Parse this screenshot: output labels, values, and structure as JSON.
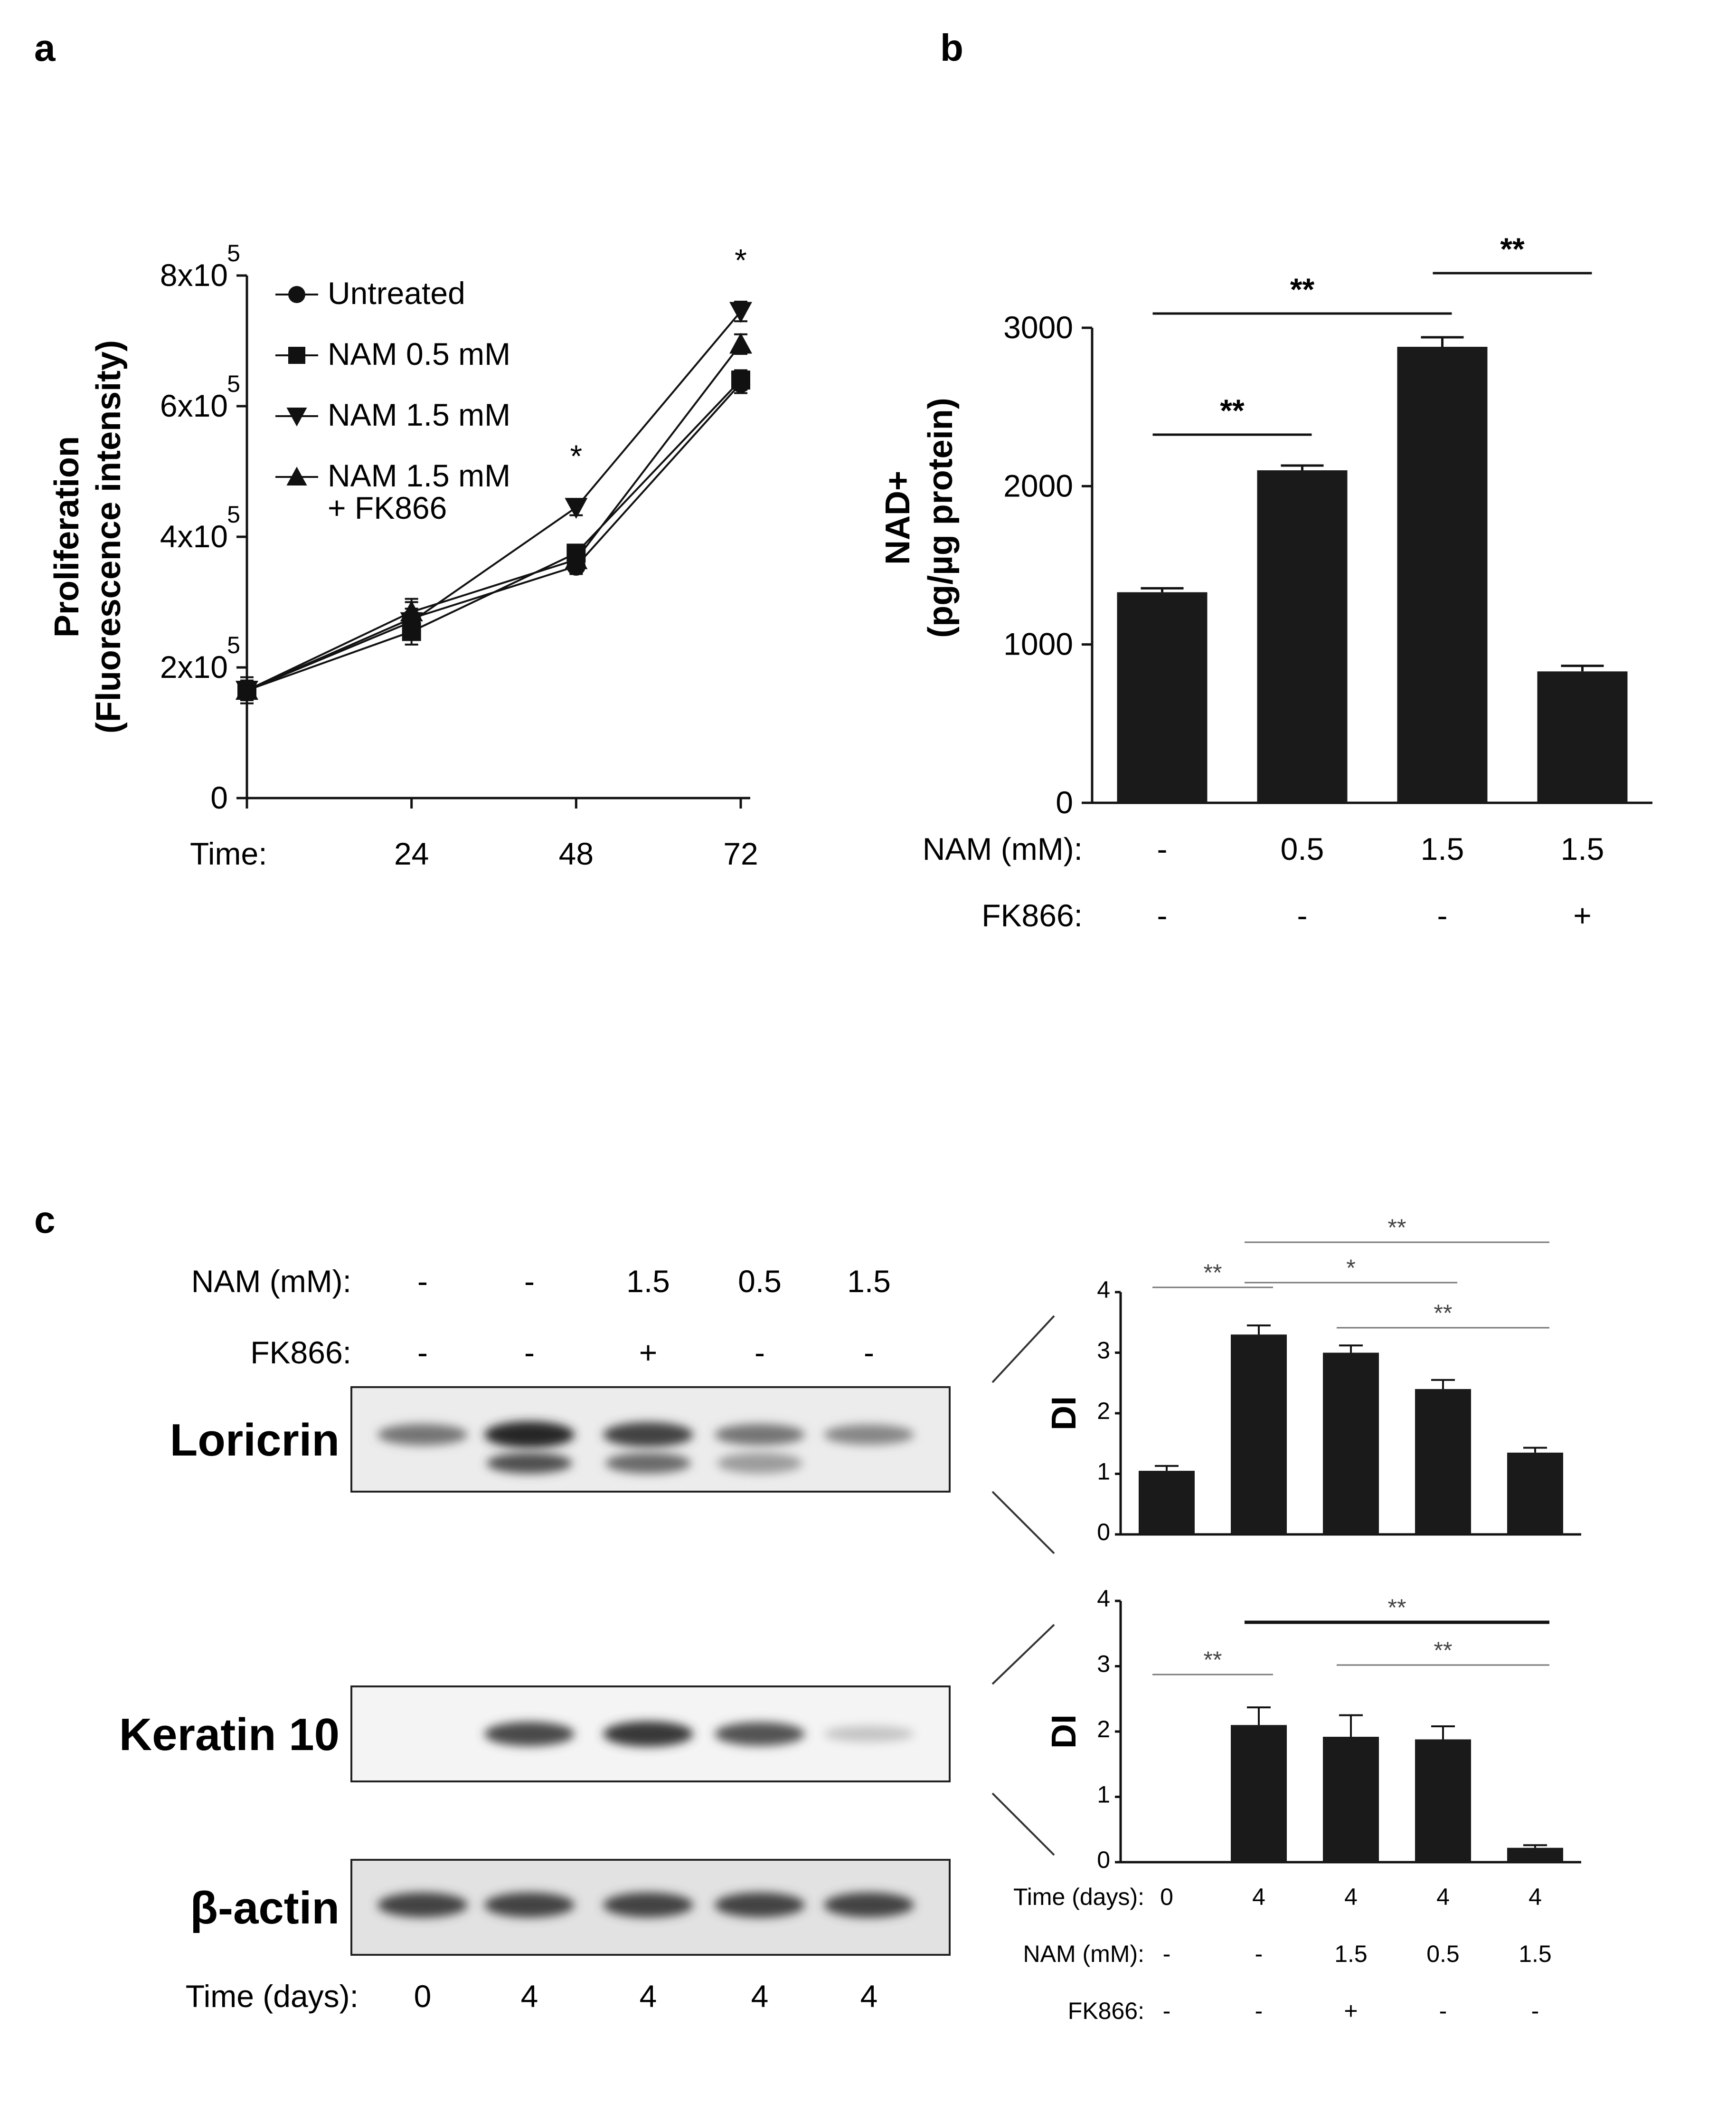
{
  "panels": {
    "a": {
      "label": "a"
    },
    "b": {
      "label": "b"
    },
    "c": {
      "label": "c"
    }
  },
  "chart_data": [
    {
      "panel": "a",
      "type": "line",
      "ylabel": "Proliferation\n(Fluorescence intensity)",
      "x_prefix": "Time:",
      "x": [
        0,
        24,
        48,
        72
      ],
      "x_ticks": [
        "24",
        "48",
        "72"
      ],
      "y_ticks": [
        {
          "value": 0,
          "base": "0",
          "exp": ""
        },
        {
          "value": 200000,
          "base": "2x10",
          "exp": "5"
        },
        {
          "value": 400000,
          "base": "4x10",
          "exp": "5"
        },
        {
          "value": 600000,
          "base": "6x10",
          "exp": "5"
        },
        {
          "value": 800000,
          "base": "8x10",
          "exp": "5"
        }
      ],
      "ylim": [
        0,
        800000
      ],
      "series": [
        {
          "name": "Untreated",
          "marker": "circle",
          "values": [
            165000,
            275000,
            355000,
            635000
          ],
          "errors": [
            15000,
            15000,
            12000,
            15000
          ]
        },
        {
          "name": "NAM 0.5 mM",
          "marker": "square",
          "values": [
            165000,
            255000,
            375000,
            640000
          ],
          "errors": [
            15000,
            12000,
            12000,
            15000
          ]
        },
        {
          "name": "NAM 1.5 mM",
          "marker": "triangle-down",
          "values": [
            165000,
            270000,
            445000,
            745000
          ],
          "errors": [
            15000,
            35000,
            12000,
            15000
          ]
        },
        {
          "name": "NAM 1.5 mM\n+ FK866",
          "marker": "triangle-up",
          "values": [
            165000,
            285000,
            365000,
            695000
          ],
          "errors": [
            20000,
            15000,
            12000,
            15000
          ]
        }
      ],
      "annotations": [
        {
          "x": 48,
          "text": "*"
        },
        {
          "x": 72,
          "text": "*"
        }
      ]
    },
    {
      "panel": "b",
      "type": "bar",
      "ylabel": "NAD+\n(pg/µg protein)",
      "ylim": [
        0,
        3000
      ],
      "y_ticks": [
        0,
        1000,
        2000,
        3000
      ],
      "values": [
        1330,
        2100,
        2880,
        830
      ],
      "errors": [
        25,
        30,
        60,
        35
      ],
      "condition_rows": [
        {
          "label": "NAM (mM):",
          "values": [
            "-",
            "0.5",
            "1.5",
            "1.5"
          ]
        },
        {
          "label": "FK866:",
          "values": [
            "-",
            "-",
            "-",
            "+"
          ]
        }
      ],
      "significance": [
        {
          "from": 0,
          "to": 1,
          "text": "**",
          "level": 1
        },
        {
          "from": 0,
          "to": 2,
          "text": "**",
          "level": 2
        },
        {
          "from": 2,
          "to": 3,
          "text": "**",
          "level": 3
        }
      ]
    },
    {
      "panel": "c-loricrin",
      "type": "bar",
      "ylabel": "DI",
      "ylim": [
        0,
        4
      ],
      "y_ticks": [
        0,
        1,
        2,
        3,
        4
      ],
      "values": [
        1.05,
        3.3,
        3.0,
        2.4,
        1.35
      ],
      "errors": [
        0.08,
        0.15,
        0.12,
        0.15,
        0.08
      ],
      "significance": [
        {
          "from": 0,
          "to": 1,
          "text": "**",
          "level": 1
        },
        {
          "from": 1,
          "to": 3,
          "text": "*",
          "level": 2
        },
        {
          "from": 1,
          "to": 4,
          "text": "**",
          "level": 3
        },
        {
          "from": 2,
          "to": 4,
          "text": "**",
          "level": 1
        }
      ]
    },
    {
      "panel": "c-keratin10",
      "type": "bar",
      "ylabel": "DI",
      "ylim": [
        0,
        4
      ],
      "y_ticks": [
        0,
        1,
        2,
        3,
        4
      ],
      "values": [
        0.0,
        2.1,
        1.92,
        1.88,
        0.22
      ],
      "errors": [
        0.0,
        0.27,
        0.33,
        0.2,
        0.04
      ],
      "condition_rows": [
        {
          "label": "Time (days):",
          "values": [
            "0",
            "4",
            "4",
            "4",
            "4"
          ]
        },
        {
          "label": "NAM (mM):",
          "values": [
            "-",
            "-",
            "1.5",
            "0.5",
            "1.5"
          ]
        },
        {
          "label": "FK866:",
          "values": [
            "-",
            "-",
            "+",
            "-",
            "-"
          ]
        }
      ],
      "significance": [
        {
          "from": 0,
          "to": 1,
          "text": "**",
          "level": 1
        },
        {
          "from": 2,
          "to": 4,
          "text": "**",
          "level": 2
        },
        {
          "from": 1,
          "to": 4,
          "text": "**",
          "level": 3
        }
      ]
    }
  ],
  "blots": {
    "header_rows": [
      {
        "label": "NAM (mM):",
        "values": [
          "-",
          "-",
          "1.5",
          "0.5",
          "1.5"
        ]
      },
      {
        "label": "FK866:",
        "values": [
          "-",
          "-",
          "+",
          "-",
          "-"
        ]
      }
    ],
    "footer_row": {
      "label": "Time (days):",
      "values": [
        "0",
        "4",
        "4",
        "4",
        "4"
      ]
    },
    "proteins": [
      {
        "name": "Loricrin",
        "intensities": [
          0.55,
          1.0,
          0.85,
          0.55,
          0.45
        ]
      },
      {
        "name": "Keratin 10",
        "intensities": [
          0.0,
          0.8,
          0.9,
          0.75,
          0.08
        ]
      },
      {
        "name": "β-actin",
        "intensities": [
          0.85,
          0.85,
          0.85,
          0.85,
          0.85
        ]
      }
    ]
  }
}
